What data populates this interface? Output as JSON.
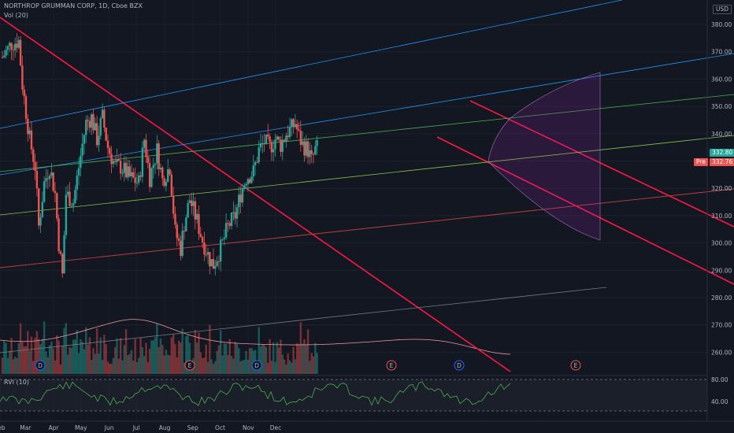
{
  "symbol": {
    "title": "NORTHROP GRUMMAN CORP, 1D, Cboe BZX",
    "volume_label": "Vol (20)",
    "indicator_label": "RVI (10)"
  },
  "currency": "USD",
  "price_tags": {
    "last": "332.80",
    "pre_label": "Pre",
    "pre_value": "332.76",
    "last_color": "#26a69a",
    "pre_color": "#ef5350"
  },
  "chart_data": {
    "type": "candlestick",
    "y_ticks": [
      "380.00",
      "370.00",
      "360.00",
      "350.00",
      "340.00",
      "330.00",
      "320.00",
      "310.00",
      "300.00",
      "290.00",
      "280.00",
      "270.00",
      "260.00"
    ],
    "y_values": [
      380,
      370,
      360,
      350,
      340,
      330,
      320,
      310,
      300,
      290,
      280,
      270,
      260
    ],
    "x_ticks": [
      "Feb",
      "Mar",
      "Apr",
      "May",
      "Jun",
      "Jul",
      "Aug",
      "Sep",
      "Oct",
      "Nov",
      "Dec"
    ],
    "rvi_ticks": [
      "80.00",
      "40.00"
    ],
    "ylim": [
      255,
      385
    ],
    "earnings_markers": [
      "D",
      "E",
      "D",
      "E",
      "D",
      "E"
    ],
    "colors": {
      "up": "#26a69a",
      "down": "#ef5350",
      "trend_red": "#ff1744",
      "blue": "#2196f3",
      "green": "#4caf50",
      "rvi": "#4caf50"
    }
  }
}
